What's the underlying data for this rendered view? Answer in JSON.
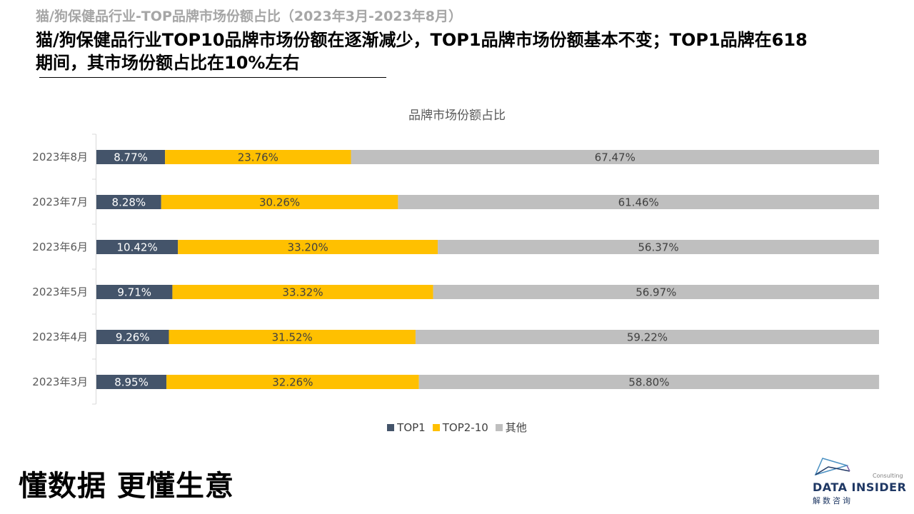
{
  "header": {
    "subtitle": "猫/狗保健品行业-TOP品牌市场份额占比（2023年3月-2023年8月）",
    "headline": "猫/狗保健品行业TOP10品牌市场份额在逐渐减少，TOP1品牌市场份额基本不变；TOP1品牌在618期间，其市场份额占比在10%左右"
  },
  "chart_data": {
    "type": "bar",
    "orientation": "horizontal",
    "stacked": true,
    "title": "品牌市场份额占比",
    "categories": [
      "2023年8月",
      "2023年7月",
      "2023年6月",
      "2023年5月",
      "2023年4月",
      "2023年3月"
    ],
    "series": [
      {
        "name": "TOP1",
        "color": "#44546a",
        "values": [
          8.77,
          8.28,
          10.42,
          9.71,
          9.26,
          8.95
        ],
        "labels": [
          "8.77%",
          "8.28%",
          "10.42%",
          "9.71%",
          "9.26%",
          "8.95%"
        ]
      },
      {
        "name": "TOP2-10",
        "color": "#ffc000",
        "values": [
          23.76,
          30.26,
          33.2,
          33.32,
          31.52,
          32.26
        ],
        "labels": [
          "23.76%",
          "30.26%",
          "33.20%",
          "33.32%",
          "31.52%",
          "32.26%"
        ]
      },
      {
        "name": "其他",
        "color": "#bfbfbf",
        "values": [
          67.47,
          61.46,
          56.37,
          56.97,
          59.22,
          58.8
        ],
        "labels": [
          "67.47%",
          "61.46%",
          "56.37%",
          "56.97%",
          "59.22%",
          "58.80%"
        ]
      }
    ],
    "xlim": [
      0,
      100
    ],
    "legend_position": "bottom"
  },
  "footer": {
    "slogan": "懂数据 更懂生意",
    "logo": {
      "consulting": "Consulting",
      "name": "DATA INSIDER",
      "cn": "解数咨询"
    }
  },
  "colors": {
    "top1": "#44546a",
    "top2_10": "#ffc000",
    "other": "#bfbfbf"
  }
}
